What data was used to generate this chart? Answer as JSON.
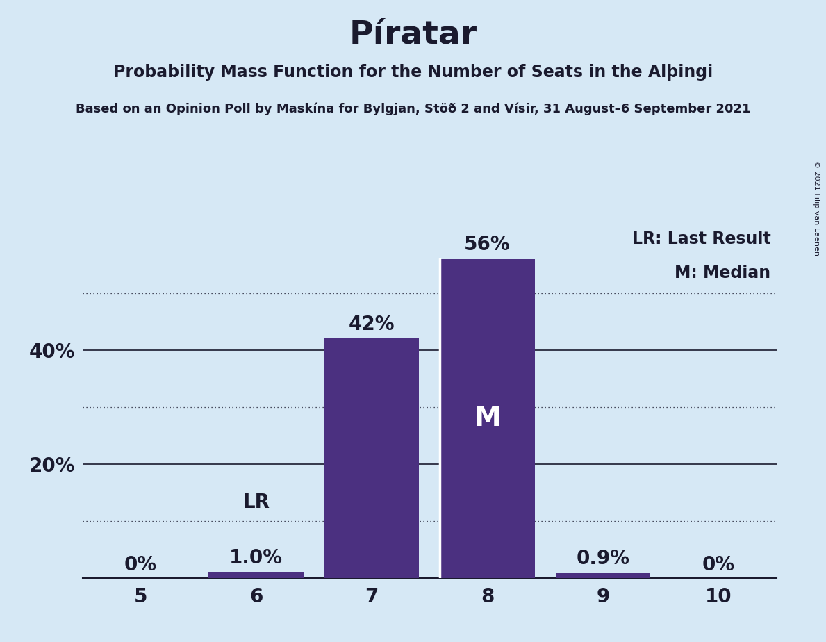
{
  "title": "Píratar",
  "subtitle": "Probability Mass Function for the Number of Seats in the Alþingi",
  "source_line": "Based on an Opinion Poll by Maskína for Bylgjan, Stöð 2 and Vísir, 31 August–6 September 2021",
  "copyright": "© 2021 Filip van Laenen",
  "seats": [
    5,
    6,
    7,
    8,
    9,
    10
  ],
  "probabilities": [
    0.0,
    1.0,
    42.0,
    56.0,
    0.9,
    0.0
  ],
  "bar_labels": [
    "0%",
    "1.0%",
    "42%",
    "56%",
    "0.9%",
    "0%"
  ],
  "bar_color": "#4B3080",
  "background_color": "#D6E8F5",
  "median_seat": 8,
  "last_result_seat": 6,
  "legend_lr": "LR: Last Result",
  "legend_m": "M: Median",
  "solid_yticks": [
    20,
    40
  ],
  "dotted_yticks": [
    10,
    30,
    50
  ],
  "ylim": [
    0,
    62
  ],
  "title_fontsize": 34,
  "subtitle_fontsize": 17,
  "source_fontsize": 13,
  "bar_label_fontsize": 20,
  "axis_label_fontsize": 20,
  "legend_fontsize": 17
}
